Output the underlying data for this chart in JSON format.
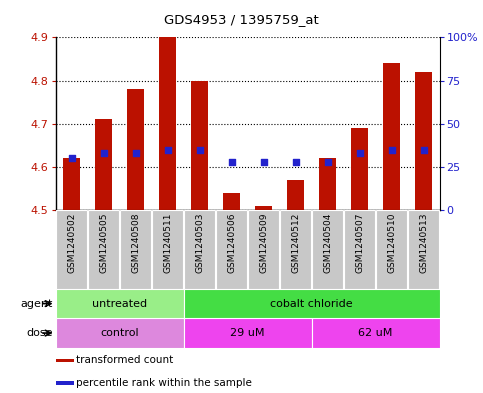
{
  "title": "GDS4953 / 1395759_at",
  "samples": [
    "GSM1240502",
    "GSM1240505",
    "GSM1240508",
    "GSM1240511",
    "GSM1240503",
    "GSM1240506",
    "GSM1240509",
    "GSM1240512",
    "GSM1240504",
    "GSM1240507",
    "GSM1240510",
    "GSM1240513"
  ],
  "bar_values": [
    4.62,
    4.71,
    4.78,
    4.9,
    4.8,
    4.54,
    4.51,
    4.57,
    4.62,
    4.69,
    4.84,
    4.82
  ],
  "bar_base": 4.5,
  "dot_pct": [
    30,
    33,
    33,
    35,
    35,
    28,
    28,
    28,
    28,
    33,
    35,
    35
  ],
  "ylim": [
    4.5,
    4.9
  ],
  "yticks": [
    4.5,
    4.6,
    4.7,
    4.8,
    4.9
  ],
  "y2ticks": [
    0,
    25,
    50,
    75,
    100
  ],
  "y2labels": [
    "0",
    "25",
    "50",
    "75",
    "100%"
  ],
  "bar_color": "#bb1100",
  "dot_color": "#2222cc",
  "sample_bg": "#c8c8c8",
  "agent_groups": [
    {
      "label": "untreated",
      "start": 0,
      "end": 4,
      "color": "#99ee88"
    },
    {
      "label": "cobalt chloride",
      "start": 4,
      "end": 12,
      "color": "#44dd44"
    }
  ],
  "dose_groups": [
    {
      "label": "control",
      "start": 0,
      "end": 4,
      "color": "#dd88dd"
    },
    {
      "label": "29 uM",
      "start": 4,
      "end": 8,
      "color": "#ee44ee"
    },
    {
      "label": "62 uM",
      "start": 8,
      "end": 12,
      "color": "#ee44ee"
    }
  ],
  "legend_items": [
    {
      "color": "#bb1100",
      "label": "transformed count"
    },
    {
      "color": "#2222cc",
      "label": "percentile rank within the sample"
    }
  ],
  "fig_w": 4.83,
  "fig_h": 3.93,
  "dpi": 100
}
